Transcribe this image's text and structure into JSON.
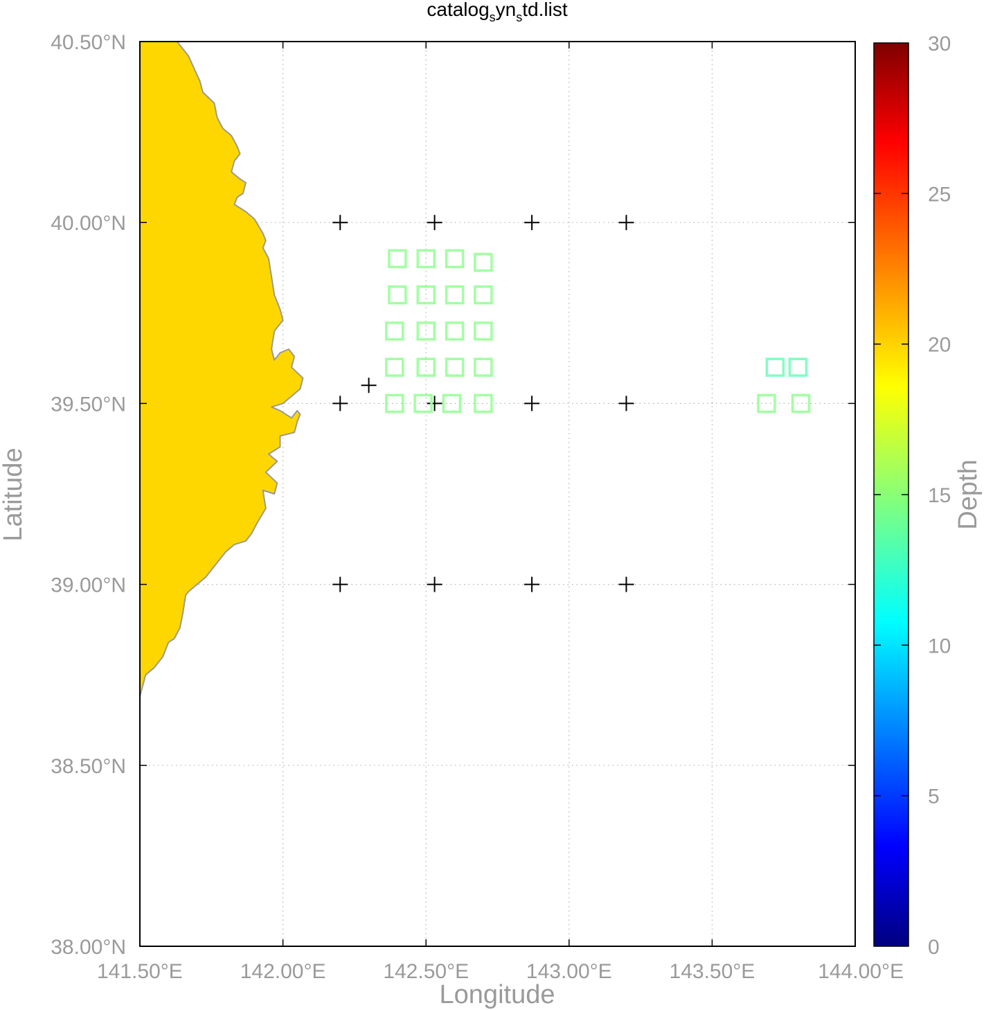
{
  "chart_data": {
    "type": "scatter",
    "title": "catalog",
    "title_sub1": "s",
    "title_mid": "yn",
    "title_sub2": "s",
    "title_end": "td.list",
    "xlabel": "Longitude",
    "ylabel": "Latitude",
    "xlim": [
      141.5,
      144.0
    ],
    "ylim": [
      38.0,
      40.5
    ],
    "grid": true,
    "x_ticks": [
      {
        "value": 141.5,
        "label": "141.50°E"
      },
      {
        "value": 142.0,
        "label": "142.00°E"
      },
      {
        "value": 142.5,
        "label": "142.50°E"
      },
      {
        "value": 143.0,
        "label": "143.00°E"
      },
      {
        "value": 143.5,
        "label": "143.50°E"
      },
      {
        "value": 144.0,
        "label": "144.00°E"
      }
    ],
    "y_ticks": [
      {
        "value": 38.0,
        "label": "38.00°N"
      },
      {
        "value": 38.5,
        "label": "38.50°N"
      },
      {
        "value": 39.0,
        "label": "39.00°N"
      },
      {
        "value": 39.5,
        "label": "39.50°N"
      },
      {
        "value": 40.0,
        "label": "40.00°N"
      },
      {
        "value": 40.5,
        "label": "40.50°N"
      }
    ],
    "colorbar": {
      "label": "Depth",
      "range": [
        0,
        30
      ],
      "ticks": [
        "0",
        "5",
        "10",
        "15",
        "20",
        "25",
        "30"
      ]
    },
    "stations": [
      {
        "lon": 142.2,
        "lat": 40.0
      },
      {
        "lon": 142.53,
        "lat": 40.0
      },
      {
        "lon": 142.87,
        "lat": 40.0
      },
      {
        "lon": 143.2,
        "lat": 40.0
      },
      {
        "lon": 142.3,
        "lat": 39.55
      },
      {
        "lon": 142.2,
        "lat": 39.5
      },
      {
        "lon": 142.53,
        "lat": 39.5
      },
      {
        "lon": 142.87,
        "lat": 39.5
      },
      {
        "lon": 143.2,
        "lat": 39.5
      },
      {
        "lon": 142.2,
        "lat": 39.0
      },
      {
        "lon": 142.53,
        "lat": 39.0
      },
      {
        "lon": 142.87,
        "lat": 39.0
      },
      {
        "lon": 143.2,
        "lat": 39.0
      }
    ],
    "events": [
      {
        "lon": 142.4,
        "lat": 39.9,
        "depth": 15
      },
      {
        "lon": 142.5,
        "lat": 39.9,
        "depth": 15
      },
      {
        "lon": 142.6,
        "lat": 39.9,
        "depth": 15
      },
      {
        "lon": 142.7,
        "lat": 39.89,
        "depth": 15
      },
      {
        "lon": 142.4,
        "lat": 39.8,
        "depth": 15
      },
      {
        "lon": 142.5,
        "lat": 39.8,
        "depth": 15
      },
      {
        "lon": 142.6,
        "lat": 39.8,
        "depth": 15
      },
      {
        "lon": 142.7,
        "lat": 39.8,
        "depth": 15
      },
      {
        "lon": 142.39,
        "lat": 39.7,
        "depth": 15
      },
      {
        "lon": 142.5,
        "lat": 39.7,
        "depth": 15
      },
      {
        "lon": 142.6,
        "lat": 39.7,
        "depth": 15
      },
      {
        "lon": 142.7,
        "lat": 39.7,
        "depth": 15
      },
      {
        "lon": 142.39,
        "lat": 39.6,
        "depth": 15
      },
      {
        "lon": 142.5,
        "lat": 39.6,
        "depth": 15
      },
      {
        "lon": 142.6,
        "lat": 39.6,
        "depth": 15
      },
      {
        "lon": 142.7,
        "lat": 39.6,
        "depth": 15
      },
      {
        "lon": 142.39,
        "lat": 39.5,
        "depth": 15
      },
      {
        "lon": 142.49,
        "lat": 39.5,
        "depth": 15
      },
      {
        "lon": 142.59,
        "lat": 39.5,
        "depth": 15
      },
      {
        "lon": 142.7,
        "lat": 39.5,
        "depth": 15
      },
      {
        "lon": 143.72,
        "lat": 39.6,
        "depth": 14
      },
      {
        "lon": 143.8,
        "lat": 39.6,
        "depth": 14
      },
      {
        "lon": 143.69,
        "lat": 39.5,
        "depth": 15
      },
      {
        "lon": 143.81,
        "lat": 39.5,
        "depth": 15
      }
    ],
    "coastline": [
      [
        141.5,
        40.5
      ],
      [
        141.63,
        40.5
      ],
      [
        141.67,
        40.46
      ],
      [
        141.71,
        40.39
      ],
      [
        141.72,
        40.36
      ],
      [
        141.76,
        40.33
      ],
      [
        141.77,
        40.29
      ],
      [
        141.79,
        40.26
      ],
      [
        141.82,
        40.24
      ],
      [
        141.84,
        40.21
      ],
      [
        141.85,
        40.19
      ],
      [
        141.83,
        40.17
      ],
      [
        141.82,
        40.14
      ],
      [
        141.85,
        40.12
      ],
      [
        141.87,
        40.11
      ],
      [
        141.86,
        40.08
      ],
      [
        141.84,
        40.07
      ],
      [
        141.83,
        40.05
      ],
      [
        141.87,
        40.03
      ],
      [
        141.9,
        40.01
      ],
      [
        141.93,
        39.97
      ],
      [
        141.94,
        39.95
      ],
      [
        141.93,
        39.93
      ],
      [
        141.95,
        39.9
      ],
      [
        141.96,
        39.85
      ],
      [
        141.97,
        39.8
      ],
      [
        141.99,
        39.76
      ],
      [
        142.0,
        39.73
      ],
      [
        141.97,
        39.7
      ],
      [
        141.96,
        39.65
      ],
      [
        141.97,
        39.62
      ],
      [
        141.99,
        39.64
      ],
      [
        142.02,
        39.65
      ],
      [
        142.04,
        39.63
      ],
      [
        142.03,
        39.6
      ],
      [
        142.07,
        39.57
      ],
      [
        142.06,
        39.54
      ],
      [
        142.03,
        39.52
      ],
      [
        142.0,
        39.5
      ],
      [
        141.96,
        39.49
      ],
      [
        141.99,
        39.48
      ],
      [
        142.03,
        39.46
      ],
      [
        142.05,
        39.48
      ],
      [
        142.06,
        39.47
      ],
      [
        142.05,
        39.45
      ],
      [
        142.04,
        39.42
      ],
      [
        141.99,
        39.41
      ],
      [
        141.99,
        39.38
      ],
      [
        141.95,
        39.36
      ],
      [
        141.98,
        39.34
      ],
      [
        141.94,
        39.31
      ],
      [
        141.98,
        39.28
      ],
      [
        141.97,
        39.25
      ],
      [
        141.93,
        39.26
      ],
      [
        141.94,
        39.21
      ],
      [
        141.91,
        39.17
      ],
      [
        141.89,
        39.14
      ],
      [
        141.87,
        39.12
      ],
      [
        141.83,
        39.11
      ],
      [
        141.8,
        39.09
      ],
      [
        141.76,
        39.05
      ],
      [
        141.73,
        39.02
      ],
      [
        141.7,
        39.0
      ],
      [
        141.67,
        38.98
      ],
      [
        141.66,
        38.97
      ],
      [
        141.65,
        38.92
      ],
      [
        141.64,
        38.88
      ],
      [
        141.62,
        38.85
      ],
      [
        141.6,
        38.84
      ],
      [
        141.58,
        38.8
      ],
      [
        141.55,
        38.77
      ],
      [
        141.52,
        38.75
      ],
      [
        141.51,
        38.72
      ],
      [
        141.5,
        38.69
      ]
    ]
  }
}
